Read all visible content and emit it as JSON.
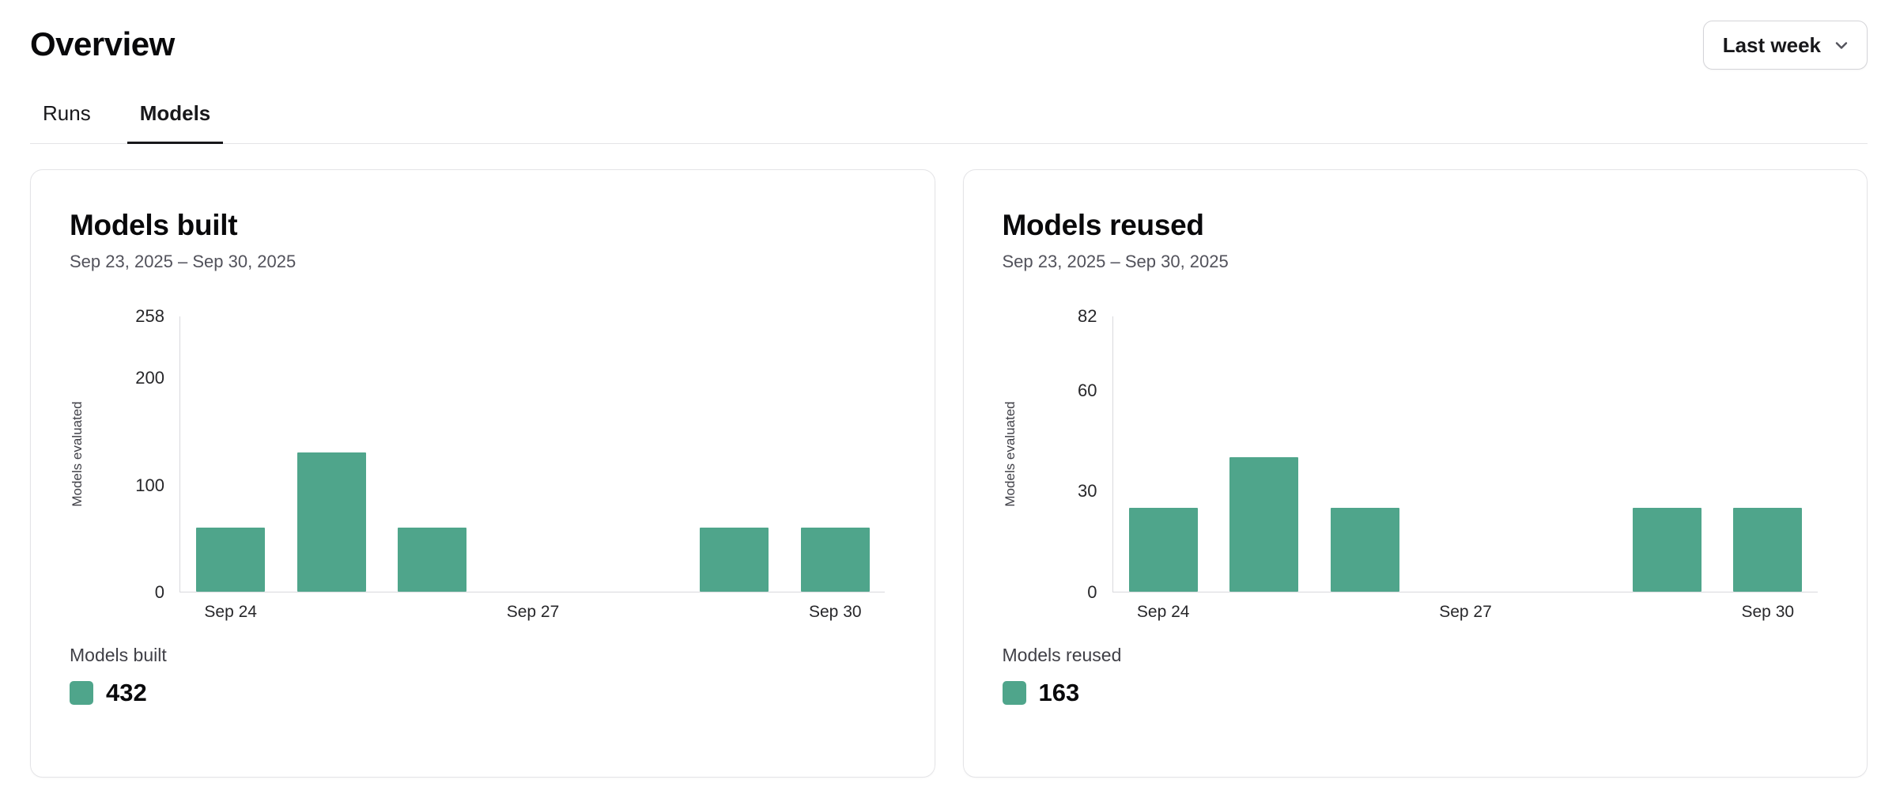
{
  "page": {
    "title": "Overview"
  },
  "filter": {
    "selected": "Last week"
  },
  "tabs": [
    {
      "label": "Runs",
      "active": false
    },
    {
      "label": "Models",
      "active": true
    }
  ],
  "colors": {
    "bar": "#4fa58b",
    "axis": "#d9d9dd"
  },
  "chart_data": [
    {
      "type": "bar",
      "title": "Models built",
      "subtitle": "Sep 23, 2025 – Sep 30, 2025",
      "ylabel": "Models evaluated",
      "categories": [
        "Sep 24",
        "Sep 25",
        "Sep 26",
        "Sep 27",
        "Sep 28",
        "Sep 29",
        "Sep 30"
      ],
      "values": [
        60,
        130,
        60,
        0,
        0,
        60,
        60
      ],
      "ylim": [
        0,
        258
      ],
      "yticks": [
        258,
        200,
        100,
        0
      ],
      "xticks": [
        "Sep 24",
        "Sep 27",
        "Sep 30"
      ],
      "xtick_indices": [
        0,
        3,
        6
      ],
      "grid": false,
      "legend_position": "bottom-left",
      "legend_label": "Models built",
      "total": "432"
    },
    {
      "type": "bar",
      "title": "Models reused",
      "subtitle": "Sep 23, 2025 – Sep 30, 2025",
      "ylabel": "Models evaluated",
      "categories": [
        "Sep 24",
        "Sep 25",
        "Sep 26",
        "Sep 27",
        "Sep 28",
        "Sep 29",
        "Sep 30"
      ],
      "values": [
        25,
        40,
        25,
        0,
        0,
        25,
        25
      ],
      "ylim": [
        0,
        82
      ],
      "yticks": [
        82,
        60,
        30,
        0
      ],
      "xticks": [
        "Sep 24",
        "Sep 27",
        "Sep 30"
      ],
      "xtick_indices": [
        0,
        3,
        6
      ],
      "grid": false,
      "legend_position": "bottom-left",
      "legend_label": "Models reused",
      "total": "163"
    }
  ]
}
